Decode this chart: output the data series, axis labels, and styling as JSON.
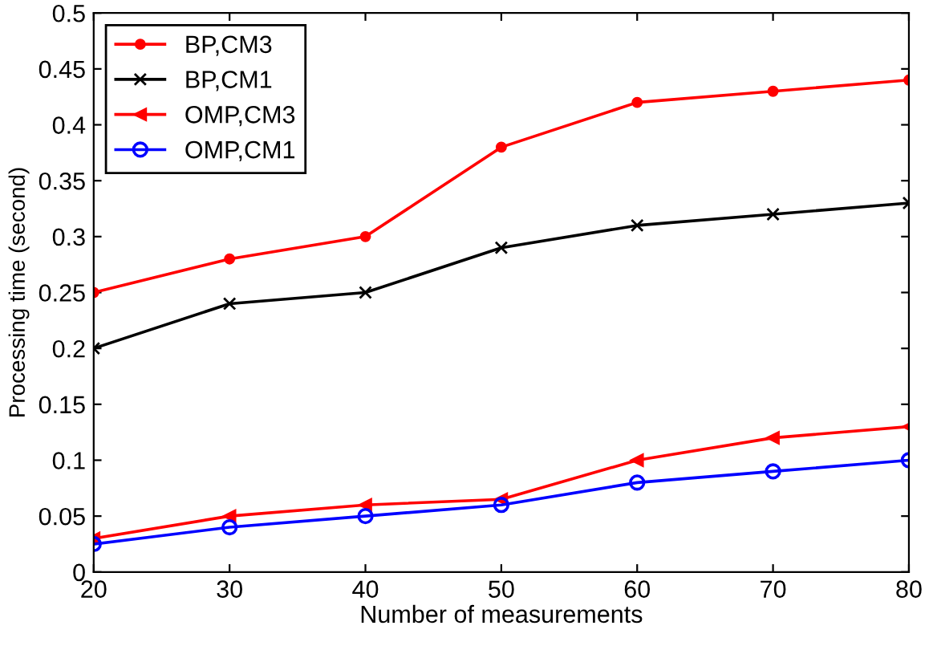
{
  "chart_data": {
    "type": "line",
    "xlabel": "Number of measurements",
    "ylabel": "Processing time (second)",
    "x": [
      20,
      30,
      40,
      50,
      60,
      70,
      80
    ],
    "series": [
      {
        "name": "BP,CM3",
        "color": "#ff0000",
        "marker": "circle",
        "values": [
          0.25,
          0.28,
          0.3,
          0.38,
          0.42,
          0.43,
          0.44
        ]
      },
      {
        "name": "BP,CM1",
        "color": "#000000",
        "marker": "cross",
        "values": [
          0.2,
          0.24,
          0.25,
          0.29,
          0.31,
          0.32,
          0.33
        ]
      },
      {
        "name": "OMP,CM3",
        "color": "#ff0000",
        "marker": "triangle",
        "values": [
          0.03,
          0.05,
          0.06,
          0.065,
          0.1,
          0.12,
          0.13
        ]
      },
      {
        "name": "OMP,CM1",
        "color": "#0000ff",
        "marker": "circle",
        "values": [
          0.025,
          0.04,
          0.05,
          0.06,
          0.08,
          0.09,
          0.1
        ]
      }
    ],
    "xlim": [
      20,
      80
    ],
    "xticks": [
      20,
      30,
      40,
      50,
      60,
      70,
      80
    ],
    "ylim": [
      0,
      0.5
    ],
    "yticks": [
      0,
      0.05,
      0.1,
      0.15,
      0.2,
      0.25,
      0.3,
      0.35,
      0.4,
      0.45,
      0.5
    ],
    "grid": false,
    "legend": "top left",
    "line_style": "solid"
  }
}
